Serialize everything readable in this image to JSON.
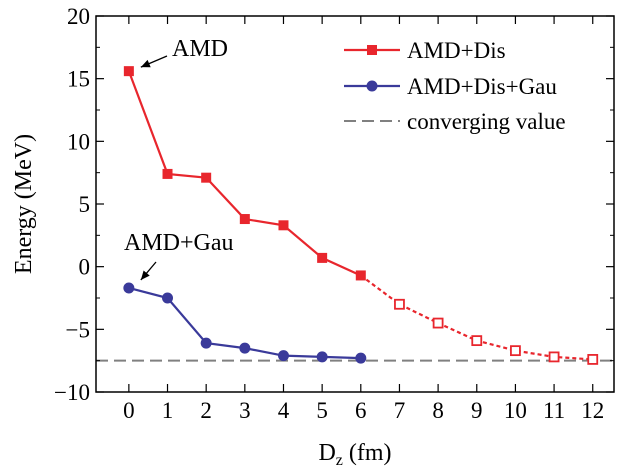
{
  "chart_data": {
    "type": "line",
    "title": "",
    "xlabel": "D",
    "xlabel_sub": "z",
    "xlabel_unit": " (fm)",
    "ylabel": "Energy (MeV)",
    "xlim": [
      -0.85,
      12.55
    ],
    "ylim": [
      -10,
      20
    ],
    "x_ticks": [
      0,
      1,
      2,
      3,
      4,
      5,
      6,
      7,
      8,
      9,
      10,
      11,
      12
    ],
    "y_ticks": [
      -10,
      -5,
      0,
      5,
      10,
      15,
      20
    ],
    "x_tick_labels": [
      "0",
      "1",
      "2",
      "3",
      "4",
      "5",
      "6",
      "7",
      "8",
      "9",
      "10",
      "11",
      "12"
    ],
    "y_tick_labels": [
      "−10",
      "−5",
      "0",
      "5",
      "10",
      "15",
      "20"
    ],
    "grid": false,
    "legend_position": "top-right",
    "series": [
      {
        "name": "AMD+Dis",
        "color": "#e8262d",
        "marker": "square",
        "x": [
          0,
          1,
          2,
          3,
          4,
          5,
          6
        ],
        "values": [
          15.6,
          7.4,
          7.1,
          3.8,
          3.3,
          0.7,
          -0.7
        ]
      },
      {
        "name": "",
        "color": "#e8262d",
        "marker": "open-square",
        "line": "dotted",
        "x": [
          6,
          7,
          8,
          9,
          10,
          11,
          12
        ],
        "values": [
          -0.7,
          -3.0,
          -4.5,
          -5.9,
          -6.7,
          -7.2,
          -7.4
        ]
      },
      {
        "name": "AMD+Dis+Gau",
        "color": "#3a3a9a",
        "marker": "circle",
        "x": [
          0,
          1,
          2,
          3,
          4,
          5,
          6
        ],
        "values": [
          -1.7,
          -2.5,
          -6.1,
          -6.5,
          -7.1,
          -7.2,
          -7.3
        ]
      },
      {
        "name": "converging value",
        "color": "#808080",
        "line": "dashed",
        "type": "hline",
        "y": -7.5
      }
    ],
    "annotations": [
      {
        "text": "AMD",
        "x": 0,
        "y": 15.6
      },
      {
        "text": "AMD+Gau",
        "x": 0,
        "y": -1.7
      }
    ]
  }
}
